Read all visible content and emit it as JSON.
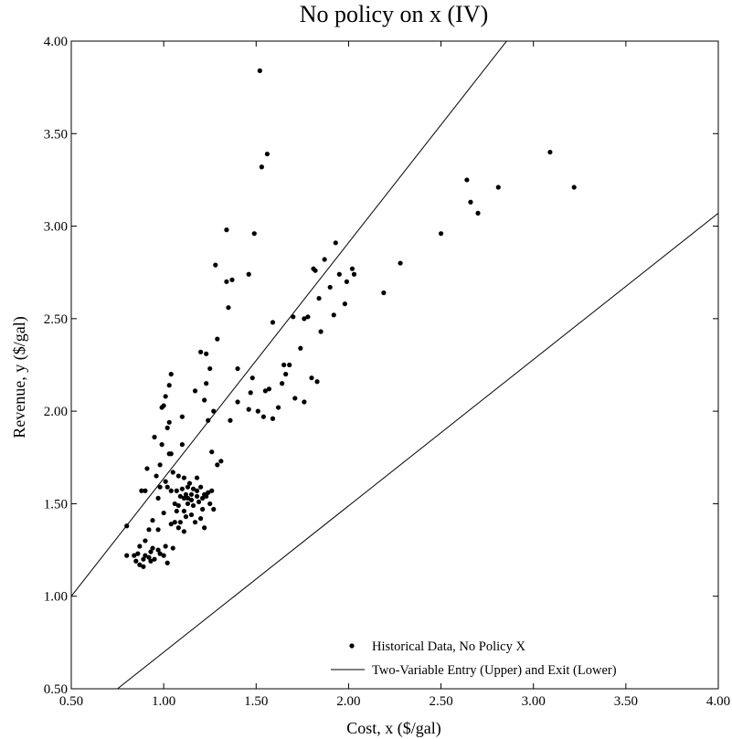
{
  "chart_data": {
    "type": "scatter",
    "title": "No policy on x (IV)",
    "xlabel": "Cost, x ($/gal)",
    "ylabel": "Revenue, y ($/gal)",
    "xlim": [
      0.5,
      4.0
    ],
    "ylim": [
      0.5,
      4.0
    ],
    "grid": false,
    "legend_position": "bottom-right",
    "x_ticks": [
      "0.50",
      "1.00",
      "1.50",
      "2.00",
      "2.50",
      "3.00",
      "3.50",
      "4.00"
    ],
    "y_ticks": [
      "0.50",
      "1.00",
      "1.50",
      "2.00",
      "2.50",
      "3.00",
      "3.50",
      "4.00"
    ],
    "series": [
      {
        "name": "Historical Data, No Policy X",
        "kind": "scatter",
        "color": "#000000",
        "points": [
          [
            0.8,
            1.38
          ],
          [
            0.8,
            1.22
          ],
          [
            0.84,
            1.22
          ],
          [
            0.85,
            1.19
          ],
          [
            0.86,
            1.23
          ],
          [
            0.87,
            1.17
          ],
          [
            0.87,
            1.27
          ],
          [
            0.88,
            1.57
          ],
          [
            0.89,
            1.2
          ],
          [
            0.89,
            1.16
          ],
          [
            0.9,
            1.57
          ],
          [
            0.9,
            1.3
          ],
          [
            0.9,
            1.22
          ],
          [
            0.91,
            1.69
          ],
          [
            0.92,
            1.36
          ],
          [
            0.92,
            1.21
          ],
          [
            0.93,
            1.24
          ],
          [
            0.93,
            1.19
          ],
          [
            0.94,
            1.41
          ],
          [
            0.94,
            1.26
          ],
          [
            0.95,
            1.2
          ],
          [
            0.95,
            1.86
          ],
          [
            0.96,
            1.65
          ],
          [
            0.97,
            1.53
          ],
          [
            0.97,
            1.36
          ],
          [
            0.97,
            1.25
          ],
          [
            0.98,
            1.59
          ],
          [
            0.98,
            1.71
          ],
          [
            0.98,
            1.23
          ],
          [
            0.99,
            1.82
          ],
          [
            0.99,
            2.02
          ],
          [
            1.0,
            2.03
          ],
          [
            1.0,
            1.45
          ],
          [
            1.0,
            1.22
          ],
          [
            1.01,
            2.08
          ],
          [
            1.01,
            1.62
          ],
          [
            1.01,
            1.27
          ],
          [
            1.02,
            1.18
          ],
          [
            1.02,
            1.59
          ],
          [
            1.02,
            1.91
          ],
          [
            1.03,
            1.77
          ],
          [
            1.03,
            1.94
          ],
          [
            1.03,
            2.14
          ],
          [
            1.04,
            2.2
          ],
          [
            1.04,
            1.39
          ],
          [
            1.04,
            1.57
          ],
          [
            1.04,
            1.77
          ],
          [
            1.05,
            1.26
          ],
          [
            1.05,
            1.67
          ],
          [
            1.06,
            1.4
          ],
          [
            1.06,
            1.5
          ],
          [
            1.07,
            1.46
          ],
          [
            1.07,
            1.57
          ],
          [
            1.08,
            1.37
          ],
          [
            1.08,
            1.49
          ],
          [
            1.08,
            1.65
          ],
          [
            1.09,
            1.4
          ],
          [
            1.09,
            1.54
          ],
          [
            1.1,
            1.58
          ],
          [
            1.1,
            1.82
          ],
          [
            1.1,
            1.97
          ],
          [
            1.11,
            1.35
          ],
          [
            1.11,
            1.46
          ],
          [
            1.11,
            1.53
          ],
          [
            1.11,
            1.64
          ],
          [
            1.12,
            1.55
          ],
          [
            1.12,
            1.43
          ],
          [
            1.13,
            1.5
          ],
          [
            1.13,
            1.59
          ],
          [
            1.13,
            1.53
          ],
          [
            1.14,
            1.61
          ],
          [
            1.15,
            1.55
          ],
          [
            1.15,
            1.52
          ],
          [
            1.15,
            1.44
          ],
          [
            1.16,
            1.49
          ],
          [
            1.16,
            1.58
          ],
          [
            1.17,
            1.4
          ],
          [
            1.17,
            2.11
          ],
          [
            1.18,
            1.57
          ],
          [
            1.18,
            1.54
          ],
          [
            1.18,
            1.64
          ],
          [
            1.19,
            1.51
          ],
          [
            1.2,
            1.42
          ],
          [
            1.2,
            1.59
          ],
          [
            1.2,
            2.32
          ],
          [
            1.21,
            1.47
          ],
          [
            1.21,
            1.53
          ],
          [
            1.22,
            1.37
          ],
          [
            1.22,
            1.55
          ],
          [
            1.22,
            2.06
          ],
          [
            1.23,
            1.54
          ],
          [
            1.23,
            2.31
          ],
          [
            1.23,
            2.15
          ],
          [
            1.24,
            1.56
          ],
          [
            1.24,
            1.95
          ],
          [
            1.25,
            1.5
          ],
          [
            1.25,
            2.23
          ],
          [
            1.26,
            1.78
          ],
          [
            1.26,
            1.57
          ],
          [
            1.27,
            1.47
          ],
          [
            1.27,
            2.0
          ],
          [
            1.28,
            2.79
          ],
          [
            1.29,
            1.71
          ],
          [
            1.29,
            2.39
          ],
          [
            1.31,
            1.73
          ],
          [
            1.34,
            2.98
          ],
          [
            1.34,
            2.7
          ],
          [
            1.35,
            2.56
          ],
          [
            1.36,
            1.95
          ],
          [
            1.37,
            2.71
          ],
          [
            1.4,
            2.23
          ],
          [
            1.4,
            2.05
          ],
          [
            1.46,
            2.01
          ],
          [
            1.46,
            2.74
          ],
          [
            1.47,
            2.1
          ],
          [
            1.48,
            2.18
          ],
          [
            1.49,
            2.96
          ],
          [
            1.51,
            2.0
          ],
          [
            1.52,
            3.84
          ],
          [
            1.53,
            3.32
          ],
          [
            1.54,
            1.97
          ],
          [
            1.55,
            2.11
          ],
          [
            1.56,
            3.39
          ],
          [
            1.57,
            2.12
          ],
          [
            1.59,
            1.96
          ],
          [
            1.59,
            2.48
          ],
          [
            1.62,
            2.02
          ],
          [
            1.64,
            2.15
          ],
          [
            1.65,
            2.25
          ],
          [
            1.66,
            2.2
          ],
          [
            1.68,
            2.25
          ],
          [
            1.7,
            2.51
          ],
          [
            1.71,
            2.07
          ],
          [
            1.74,
            2.34
          ],
          [
            1.76,
            2.05
          ],
          [
            1.76,
            2.5
          ],
          [
            1.78,
            2.51
          ],
          [
            1.8,
            2.18
          ],
          [
            1.81,
            2.77
          ],
          [
            1.82,
            2.76
          ],
          [
            1.83,
            2.16
          ],
          [
            1.84,
            2.61
          ],
          [
            1.85,
            2.43
          ],
          [
            1.87,
            2.82
          ],
          [
            1.9,
            2.67
          ],
          [
            1.92,
            2.52
          ],
          [
            1.93,
            2.91
          ],
          [
            1.95,
            2.74
          ],
          [
            1.98,
            2.58
          ],
          [
            1.99,
            2.7
          ],
          [
            2.02,
            2.77
          ],
          [
            2.03,
            2.74
          ],
          [
            2.19,
            2.64
          ],
          [
            2.28,
            2.8
          ],
          [
            2.5,
            2.96
          ],
          [
            2.64,
            3.25
          ],
          [
            2.66,
            3.13
          ],
          [
            2.7,
            3.07
          ],
          [
            2.81,
            3.21
          ],
          [
            3.09,
            3.4
          ],
          [
            3.22,
            3.21
          ]
        ]
      },
      {
        "name": "Two-Variable Entry (Upper) and Exit (Lower)",
        "kind": "line",
        "color": "#000000",
        "lines": [
          [
            [
              0.5,
              1.0
            ],
            [
              2.855,
              4.0
            ]
          ],
          [
            [
              0.75,
              0.5
            ],
            [
              4.0,
              3.07
            ]
          ]
        ]
      }
    ]
  }
}
